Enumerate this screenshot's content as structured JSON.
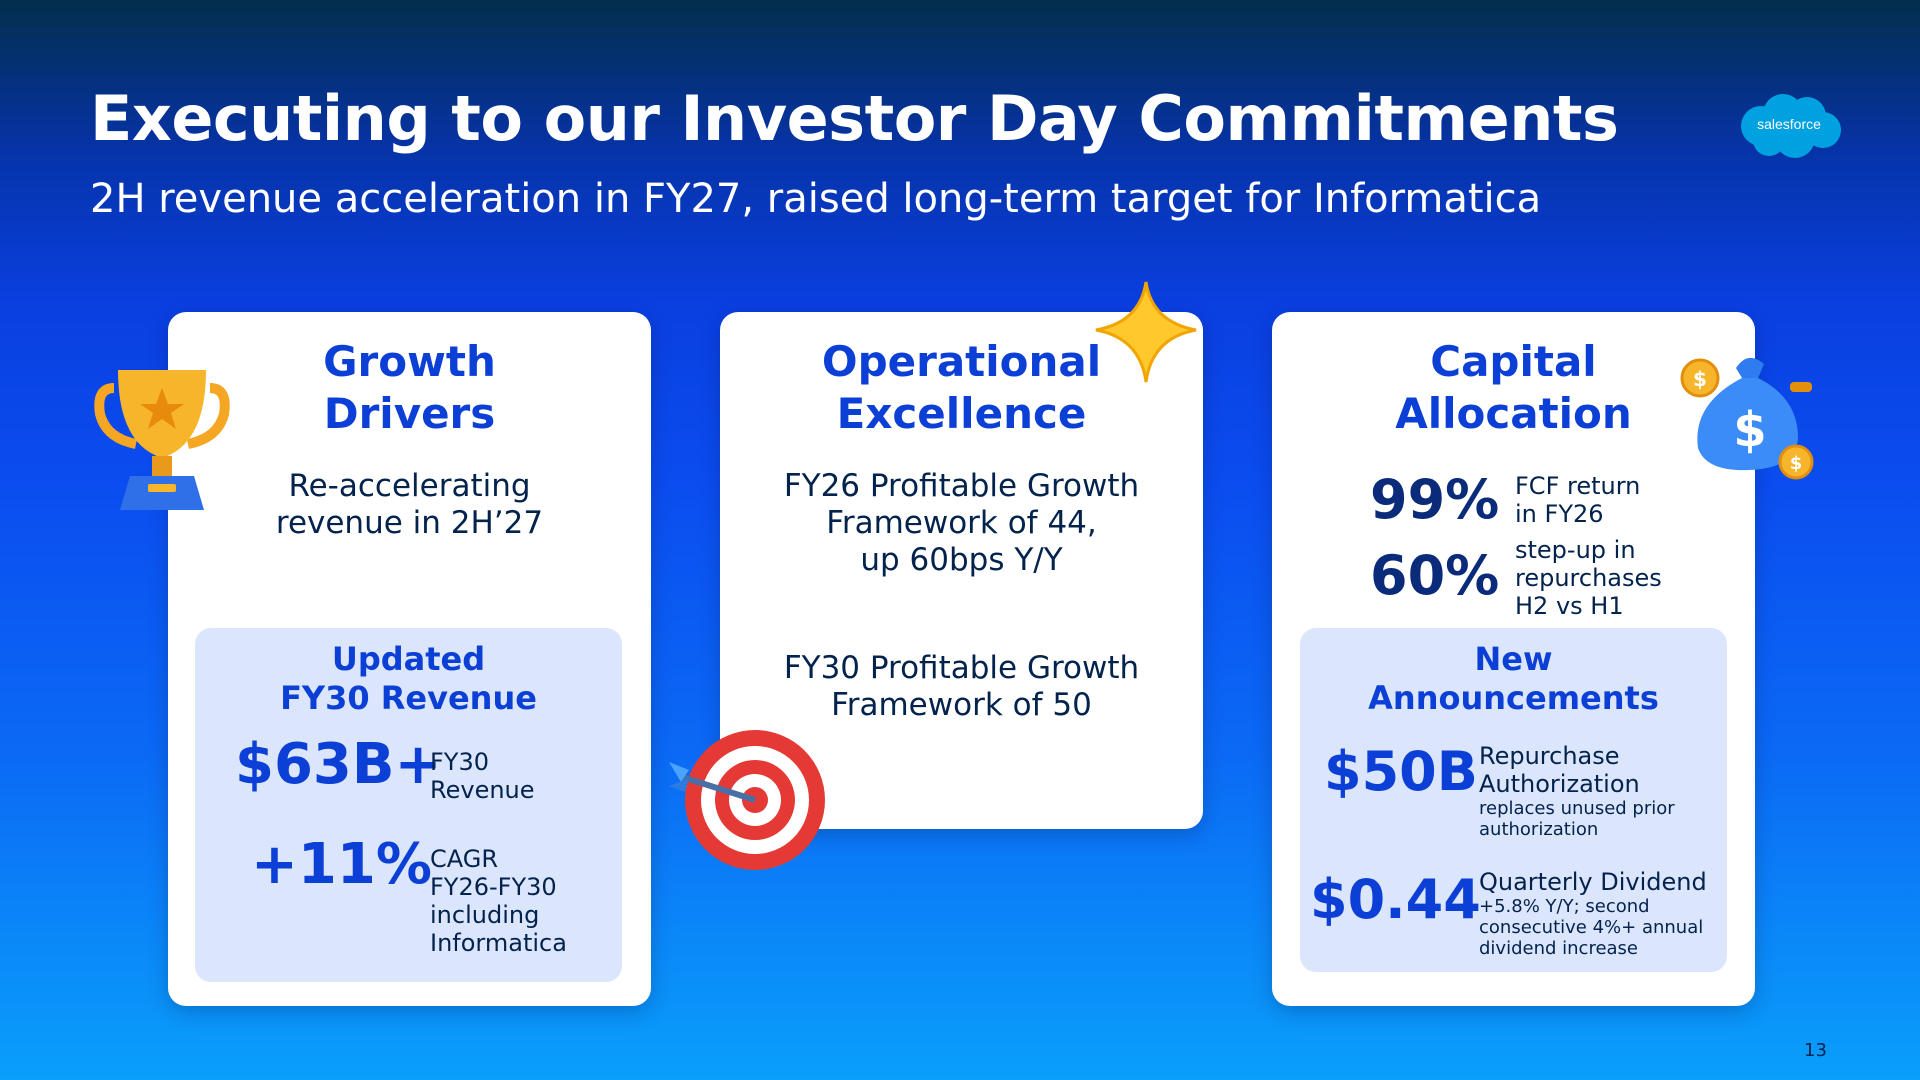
{
  "slide": {
    "title": "Executing to our Investor Day Commitments",
    "subtitle": "2H revenue acceleration in FY27, raised long-term target for Informatica",
    "logo_text": "salesforce",
    "page_number": "13"
  },
  "cards": {
    "growth": {
      "heading": [
        "Growth",
        "Drivers"
      ],
      "body": [
        "Re-accelerating",
        "revenue in 2H’27"
      ],
      "panel": {
        "heading": [
          "Updated",
          "FY30 Revenue"
        ],
        "stat1_value": "$63B+",
        "stat1_label": [
          "FY30",
          "Revenue"
        ],
        "stat2_value": "+11%",
        "stat2_label": [
          "CAGR",
          "FY26-FY30",
          "including",
          "Informatica"
        ]
      }
    },
    "operational": {
      "heading": [
        "Operational",
        "Excellence"
      ],
      "body1": [
        "FY26 Profitable Growth",
        "Framework of 44,",
        "up 60bps Y/Y"
      ],
      "body2": [
        "FY30 Profitable Growth",
        "Framework of 50"
      ]
    },
    "capital": {
      "heading": [
        "Capital",
        "Allocation"
      ],
      "stat1_value": "99%",
      "stat1_label": [
        "FCF return",
        "in FY26"
      ],
      "stat2_value": "60%",
      "stat2_label": [
        "step-up in",
        "repurchases",
        "H2 vs H1"
      ],
      "panel": {
        "heading": [
          "New",
          "Announcements"
        ],
        "stat1_value": "$50B",
        "stat1_label": [
          "Repurchase",
          "Authorization"
        ],
        "stat1_note": [
          "replaces unused prior",
          "authorization"
        ],
        "stat2_value": "$0.44",
        "stat2_label": "Quarterly Dividend",
        "stat2_note": [
          "+5.8% Y/Y; second",
          "consecutive 4%+ annual",
          "dividend increase"
        ]
      }
    }
  },
  "icons": [
    "salesforce-logo-icon",
    "trophy-icon",
    "star-icon",
    "target-icon",
    "money-bag-icon"
  ],
  "colors": {
    "accent": "#0b3fd6",
    "panel": "#dbe6fc",
    "text_dark": "#03234d"
  }
}
